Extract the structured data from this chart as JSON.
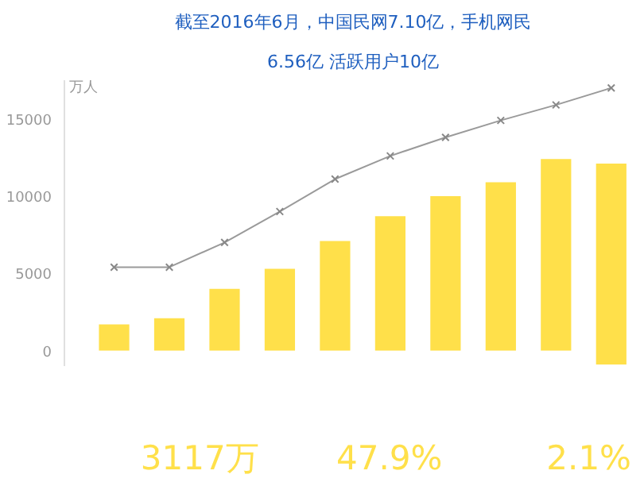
{
  "chart_data": {
    "type": "bar",
    "title": "截至2016年6月，中国民网7.10亿，手机网民",
    "subtitle": "6.56亿 活跃用户10亿",
    "ylabel": "万人",
    "categories": [
      null,
      null,
      null,
      null,
      null,
      null,
      null,
      null,
      null,
      null
    ],
    "series": [
      {
        "color": "#ffe04a",
        "values": [
          1700,
          2100,
          4000,
          5300,
          7100,
          8700,
          10000,
          10900,
          12400,
          13000
        ],
        "base": [
          0,
          0,
          0,
          0,
          0,
          0,
          0,
          0,
          0,
          -900
        ]
      },
      {
        "type": "line",
        "color": "#9a9a9a",
        "values": [
          5400,
          5400,
          7000,
          9000,
          11100,
          12600,
          13800,
          14900,
          15900,
          17000
        ]
      }
    ],
    "ylim": [
      -1000,
      17500
    ],
    "yticks": [
      0,
      5000,
      10000,
      15000
    ],
    "grid": false,
    "marker": "cross",
    "line_style": "solid",
    "annotations": [
      "3117万",
      "47.9%",
      "2.1%"
    ]
  }
}
